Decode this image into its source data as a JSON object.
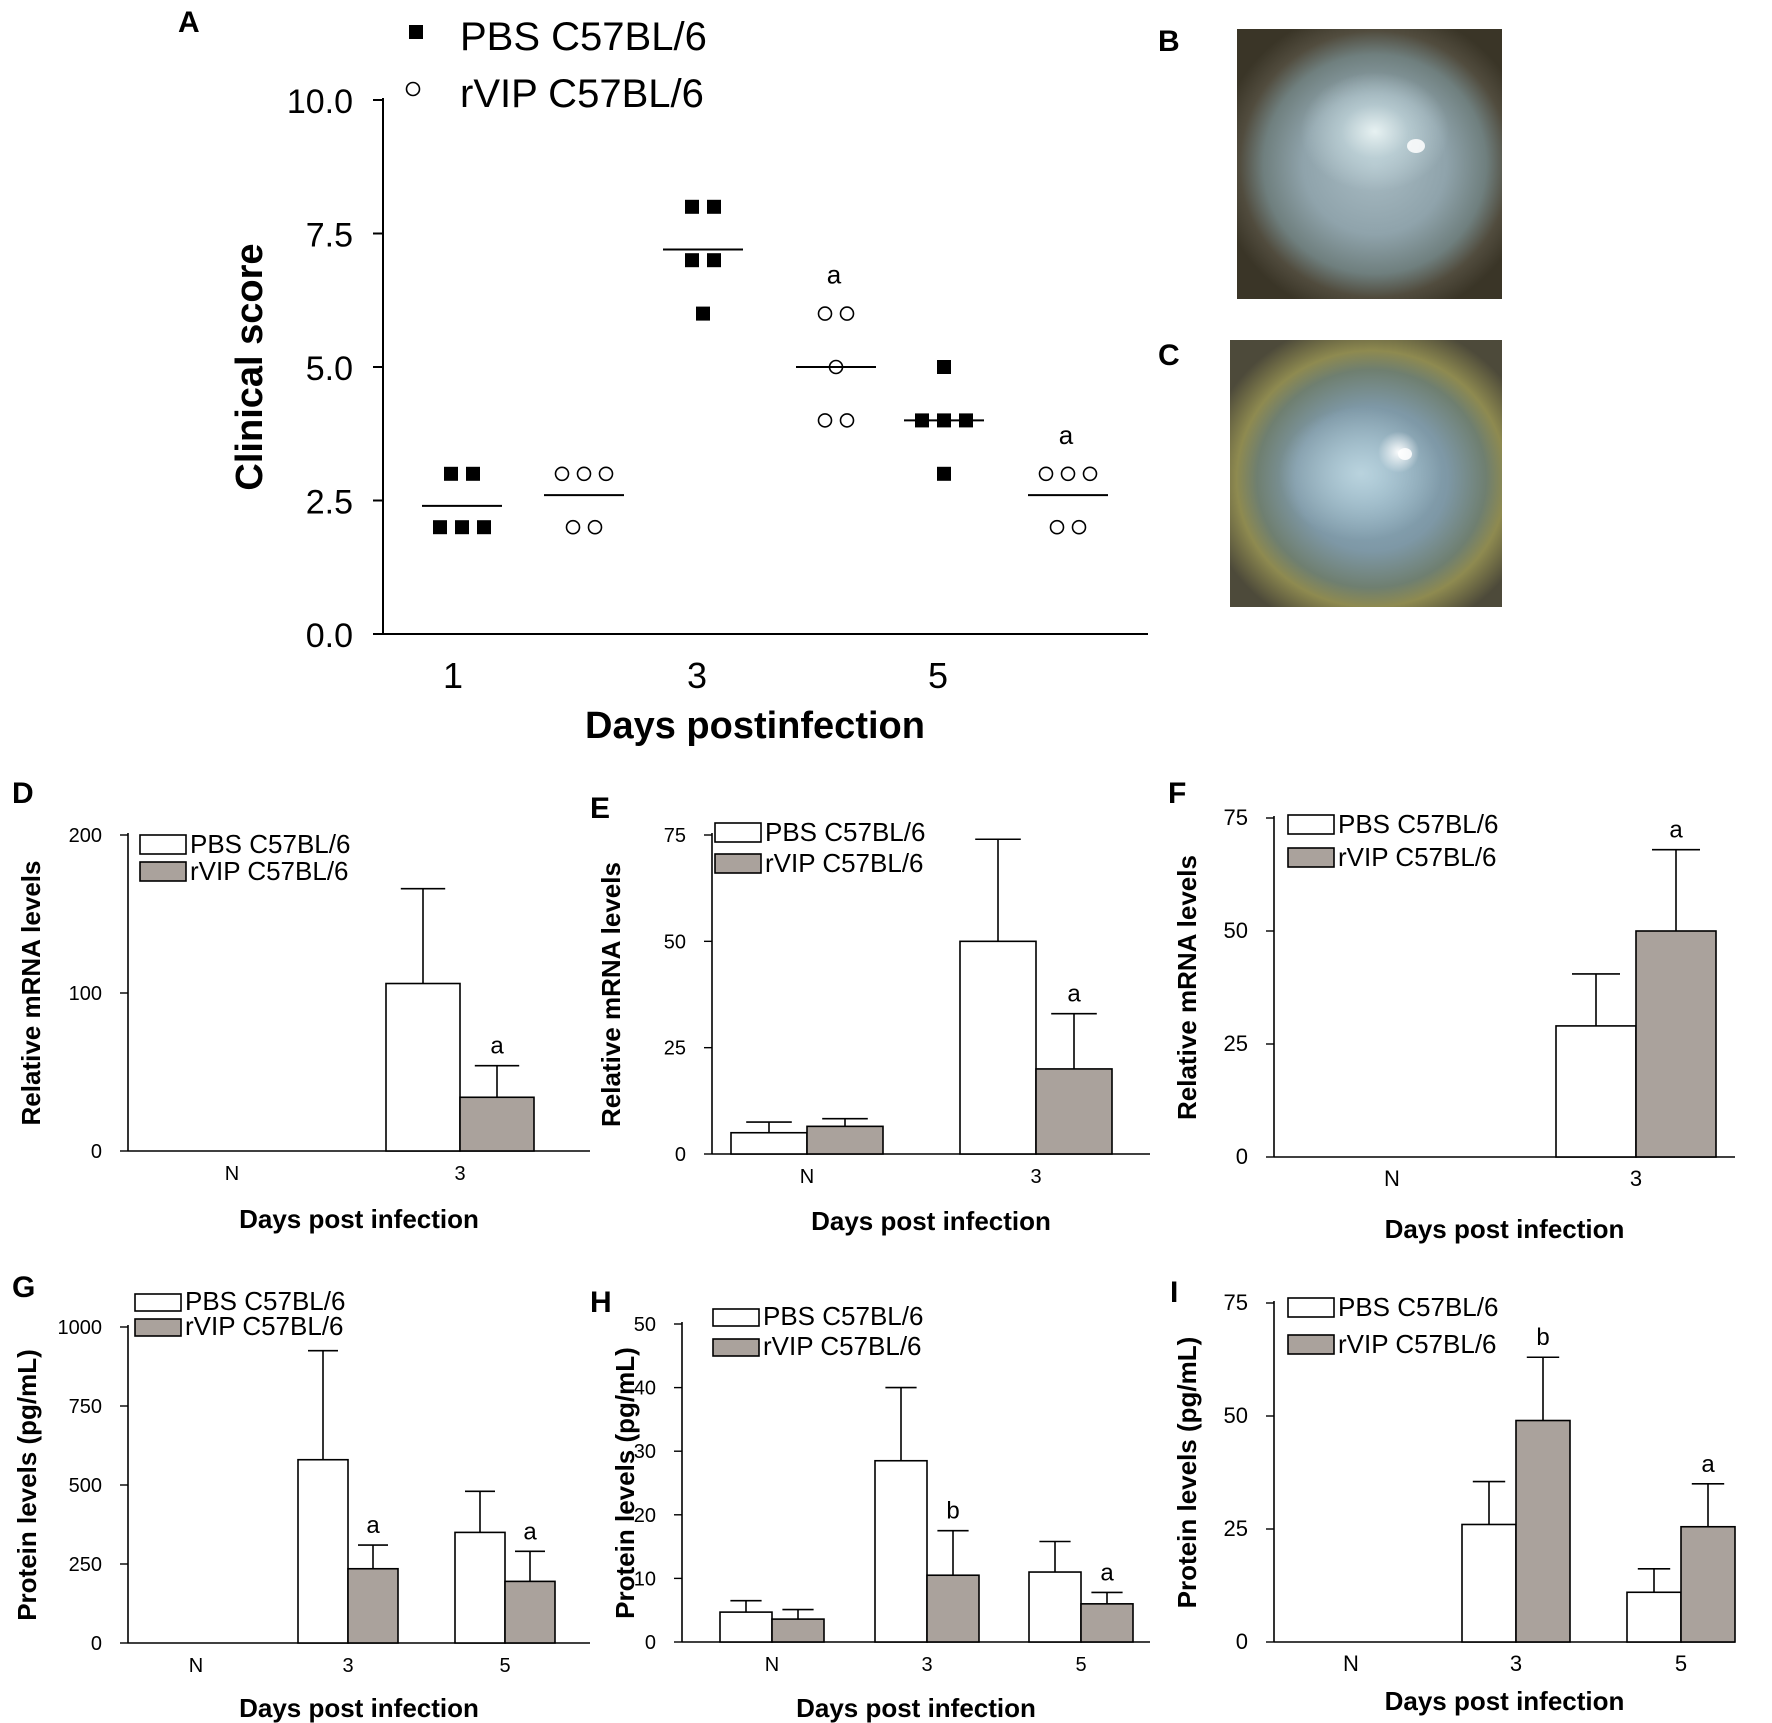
{
  "panel_letters": {
    "A": "A",
    "B": "B",
    "C": "C",
    "D": "D",
    "E": "E",
    "F": "F",
    "G": "G",
    "H": "H",
    "I": "I"
  },
  "legend": {
    "pbs": "PBS C57BL/6",
    "rvip": "rVIP C57BL/6"
  },
  "colors": {
    "pbs_fill": "#ffffff",
    "rvip_fill": "#aaa29c",
    "axis": "#000000"
  },
  "photos": [
    {
      "panel": "B",
      "type": "corneal photograph",
      "letter": "B"
    },
    {
      "panel": "C",
      "type": "corneal photograph",
      "letter": "C"
    }
  ],
  "chart_data": [
    {
      "panel": "A",
      "type": "scatter",
      "xlabel": "Days postinfection",
      "ylabel": "Clinical score",
      "xticks": [
        "1",
        "3",
        "5"
      ],
      "yticks": [
        "0.0",
        "2.5",
        "5.0",
        "7.5",
        "10.0"
      ],
      "ylim": [
        0,
        10
      ],
      "series": [
        {
          "name": "PBS C57BL/6",
          "marker": "filled-square",
          "points": [
            {
              "day": 1,
              "scores": [
                3,
                3,
                2,
                2,
                2
              ],
              "mean": 2.4
            },
            {
              "day": 3,
              "scores": [
                8,
                8,
                7,
                7,
                6
              ],
              "mean": 7.2
            },
            {
              "day": 5,
              "scores": [
                5,
                4,
                4,
                4,
                3
              ],
              "mean": 4.0
            }
          ]
        },
        {
          "name": "rVIP C57BL/6",
          "marker": "open-circle",
          "points": [
            {
              "day": 1,
              "scores": [
                3,
                3,
                3,
                2,
                2
              ],
              "mean": 2.6,
              "sig": ""
            },
            {
              "day": 3,
              "scores": [
                6,
                6,
                5,
                4,
                4
              ],
              "mean": 5.0,
              "sig": "a"
            },
            {
              "day": 5,
              "scores": [
                3,
                3,
                3,
                2,
                2
              ],
              "mean": 2.6,
              "sig": "a"
            }
          ]
        }
      ]
    },
    {
      "panel": "D",
      "type": "bar",
      "xlabel": "Days post infection",
      "ylabel": "Relative mRNA levels",
      "categories": [
        "N",
        "3"
      ],
      "ylim": [
        0,
        200
      ],
      "yticks": [
        0,
        100,
        200
      ],
      "series": [
        {
          "name": "PBS C57BL/6",
          "values": [
            0,
            106
          ],
          "errors": [
            0,
            60
          ],
          "sig": [
            "",
            ""
          ]
        },
        {
          "name": "rVIP C57BL/6",
          "values": [
            0,
            34
          ],
          "errors": [
            0,
            20
          ],
          "sig": [
            "",
            "a"
          ]
        }
      ]
    },
    {
      "panel": "E",
      "type": "bar",
      "xlabel": "Days post infection",
      "ylabel": "Relative mRNA levels",
      "categories": [
        "N",
        "3"
      ],
      "ylim": [
        0,
        75
      ],
      "yticks": [
        0,
        25,
        50,
        75
      ],
      "series": [
        {
          "name": "PBS C57BL/6",
          "values": [
            5,
            50
          ],
          "errors": [
            2.5,
            24
          ],
          "sig": [
            "",
            ""
          ]
        },
        {
          "name": "rVIP C57BL/6",
          "values": [
            6.5,
            20
          ],
          "errors": [
            1.8,
            13
          ],
          "sig": [
            "",
            "a"
          ]
        }
      ]
    },
    {
      "panel": "F",
      "type": "bar",
      "xlabel": "Days post infection",
      "ylabel": "Relative mRNA levels",
      "categories": [
        "N",
        "3"
      ],
      "ylim": [
        0,
        75
      ],
      "yticks": [
        0,
        25,
        50,
        75
      ],
      "series": [
        {
          "name": "PBS C57BL/6",
          "values": [
            0,
            29
          ],
          "errors": [
            0,
            11.5
          ],
          "sig": [
            "",
            ""
          ]
        },
        {
          "name": "rVIP C57BL/6",
          "values": [
            0,
            50
          ],
          "errors": [
            0,
            18
          ],
          "sig": [
            "",
            "a"
          ]
        }
      ]
    },
    {
      "panel": "G",
      "type": "bar",
      "xlabel": "Days post infection",
      "ylabel": "Protein levels (pg/mL)",
      "categories": [
        "N",
        "3",
        "5"
      ],
      "ylim": [
        0,
        1000
      ],
      "yticks": [
        0,
        250,
        500,
        750,
        1000
      ],
      "series": [
        {
          "name": "PBS C57BL/6",
          "values": [
            0,
            580,
            350
          ],
          "errors": [
            0,
            345,
            130
          ],
          "sig": [
            "",
            "",
            ""
          ]
        },
        {
          "name": "rVIP C57BL/6",
          "values": [
            0,
            235,
            195
          ],
          "errors": [
            0,
            75,
            95
          ],
          "sig": [
            "",
            "a",
            "a"
          ]
        }
      ]
    },
    {
      "panel": "H",
      "type": "bar",
      "xlabel": "Days post infection",
      "ylabel": "Protein levels (pg/mL)",
      "categories": [
        "N",
        "3",
        "5"
      ],
      "ylim": [
        0,
        50
      ],
      "yticks": [
        0,
        10,
        20,
        30,
        40,
        50
      ],
      "series": [
        {
          "name": "PBS C57BL/6",
          "values": [
            4.7,
            28.5,
            11
          ],
          "errors": [
            1.8,
            11.5,
            4.8
          ],
          "sig": [
            "",
            "",
            ""
          ]
        },
        {
          "name": "rVIP C57BL/6",
          "values": [
            3.6,
            10.5,
            6
          ],
          "errors": [
            1.5,
            7,
            1.8
          ],
          "sig": [
            "",
            "b",
            "a"
          ]
        }
      ]
    },
    {
      "panel": "I",
      "type": "bar",
      "xlabel": "Days post infection",
      "ylabel": "Protein levels (pg/mL)",
      "categories": [
        "N",
        "3",
        "5"
      ],
      "ylim": [
        0,
        75
      ],
      "yticks": [
        0,
        25,
        50,
        75
      ],
      "series": [
        {
          "name": "PBS C57BL/6",
          "values": [
            0,
            26,
            11
          ],
          "errors": [
            0,
            9.5,
            5.2
          ],
          "sig": [
            "",
            "",
            ""
          ]
        },
        {
          "name": "rVIP C57BL/6",
          "values": [
            0,
            49,
            25.5
          ],
          "errors": [
            0,
            14,
            9.5
          ],
          "sig": [
            "",
            "b",
            "a"
          ]
        }
      ]
    }
  ]
}
